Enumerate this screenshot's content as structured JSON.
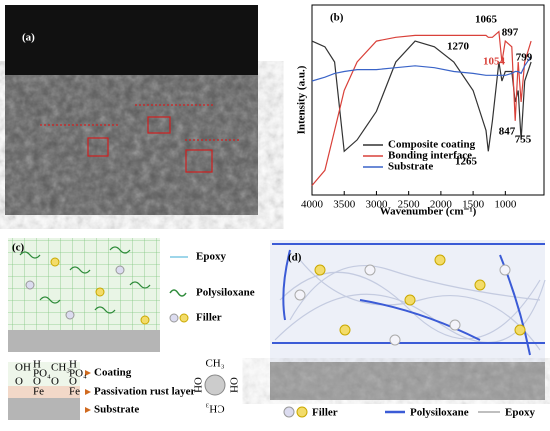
{
  "panel_labels": {
    "a": "(a)",
    "b": "(b)",
    "c": "(c)",
    "d": "(d)"
  },
  "chart_data": {
    "type": "line",
    "x_label": "Wavenumber (cm⁻¹)",
    "y_label": "Intensity (a.u.)",
    "x": [
      4000,
      3800,
      3650,
      3500,
      3300,
      3000,
      2700,
      2400,
      2100,
      1800,
      1500,
      1300,
      1265,
      1200,
      1100,
      1054,
      1000,
      900,
      847,
      800,
      755,
      700,
      600
    ],
    "series": [
      {
        "name": "Composite coating",
        "color": "#333333",
        "values": [
          81,
          78,
          70,
          23,
          29,
          44,
          70,
          81,
          78,
          70,
          55,
          34,
          23,
          39,
          70,
          60,
          65,
          65,
          49,
          55,
          29,
          60,
          70
        ]
      },
      {
        "name": "Bonding interface",
        "color": "#d9413a",
        "values": [
          5,
          13,
          34,
          55,
          70,
          81,
          83,
          84,
          84,
          84,
          84,
          84,
          83,
          83,
          86,
          70,
          81,
          78,
          39,
          70,
          49,
          70,
          81
        ]
      },
      {
        "name": "Substrate",
        "color": "#3a64c8",
        "values": [
          60,
          62,
          64,
          65,
          66,
          66,
          67,
          68,
          67,
          65,
          64,
          63,
          63,
          63,
          63,
          63,
          63,
          64,
          65,
          65,
          64,
          68,
          73
        ]
      }
    ],
    "xlim": [
      4000,
      400
    ],
    "ylim": [
      0,
      100
    ],
    "xticks": [
      4000,
      3500,
      3000,
      2500,
      2000,
      1500,
      1000
    ],
    "annotations": [
      "1065",
      "1270",
      "897",
      "799",
      "1054",
      "847",
      "755",
      "1265"
    ]
  },
  "scheme_c": {
    "legend": [
      "Epoxy",
      "Polysiloxane",
      "Filler"
    ],
    "layers": [
      "Coating",
      "Passivation rust layer",
      "Substrate"
    ],
    "groups": [
      [
        "OH",
        "O"
      ],
      [
        "H",
        "PO₄",
        "O",
        "Fe"
      ],
      [
        "CH₃",
        "O"
      ],
      [
        "H",
        "PO₄",
        "O",
        "Fe"
      ]
    ],
    "molecule": [
      "CH₃",
      "OH",
      "OH",
      "CH₃"
    ]
  },
  "scheme_d": {
    "legend": [
      "Filler",
      "Polysiloxane",
      "Epoxy"
    ]
  }
}
